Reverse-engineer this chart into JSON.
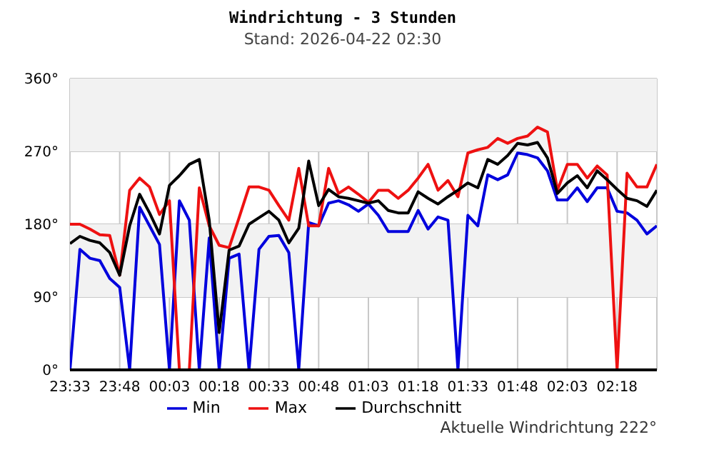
{
  "chart_data": {
    "type": "line",
    "title": "Windrichtung - 3 Stunden",
    "subtitle": "Stand: 2026-04-22 02:30",
    "x": [
      "2026-04-21T23:33",
      "2026-04-21T23:36",
      "2026-04-21T23:39",
      "2026-04-21T23:42",
      "2026-04-21T23:45",
      "2026-04-21T23:48",
      "2026-04-21T23:51",
      "2026-04-21T23:54",
      "2026-04-21T23:57",
      "2026-04-22T00:00",
      "2026-04-22T00:03",
      "2026-04-22T00:06",
      "2026-04-22T00:09",
      "2026-04-22T00:12",
      "2026-04-22T00:15",
      "2026-04-22T00:18",
      "2026-04-22T00:21",
      "2026-04-22T00:24",
      "2026-04-22T00:27",
      "2026-04-22T00:30",
      "2026-04-22T00:33",
      "2026-04-22T00:36",
      "2026-04-22T00:39",
      "2026-04-22T00:42",
      "2026-04-22T00:45",
      "2026-04-22T00:48",
      "2026-04-22T00:51",
      "2026-04-22T00:54",
      "2026-04-22T00:57",
      "2026-04-22T01:00",
      "2026-04-22T01:03",
      "2026-04-22T01:06",
      "2026-04-22T01:09",
      "2026-04-22T01:12",
      "2026-04-22T01:15",
      "2026-04-22T01:18",
      "2026-04-22T01:21",
      "2026-04-22T01:24",
      "2026-04-22T01:27",
      "2026-04-22T01:30",
      "2026-04-22T01:33",
      "2026-04-22T01:36",
      "2026-04-22T01:39",
      "2026-04-22T01:42",
      "2026-04-22T01:45",
      "2026-04-22T01:48",
      "2026-04-22T01:51",
      "2026-04-22T01:54",
      "2026-04-22T01:57",
      "2026-04-22T02:00",
      "2026-04-22T02:03",
      "2026-04-22T02:06",
      "2026-04-22T02:09",
      "2026-04-22T02:12",
      "2026-04-22T02:15",
      "2026-04-22T02:18",
      "2026-04-22T02:21",
      "2026-04-22T02:24",
      "2026-04-22T02:27",
      "2026-04-22T02:30"
    ],
    "series": [
      {
        "name": "Min",
        "color": "#0000dd",
        "values": [
          0,
          149,
          138,
          135,
          113,
          102,
          0,
          201,
          178,
          155,
          0,
          209,
          185,
          0,
          163,
          0,
          138,
          143,
          0,
          149,
          165,
          166,
          145,
          0,
          182,
          178,
          206,
          209,
          204,
          196,
          205,
          191,
          171,
          171,
          171,
          197,
          174,
          189,
          185,
          0,
          191,
          178,
          241,
          235,
          241,
          268,
          266,
          262,
          246,
          210,
          210,
          225,
          208,
          225,
          225,
          196,
          194,
          185,
          168,
          178
        ]
      },
      {
        "name": "Max",
        "color": "#ee1111",
        "values": [
          180,
          180,
          174,
          167,
          166,
          117,
          222,
          237,
          226,
          192,
          209,
          0,
          0,
          225,
          178,
          154,
          151,
          188,
          226,
          226,
          222,
          203,
          185,
          249,
          178,
          178,
          249,
          218,
          226,
          217,
          207,
          222,
          222,
          212,
          222,
          237,
          254,
          222,
          234,
          214,
          268,
          272,
          275,
          286,
          280,
          286,
          289,
          300,
          294,
          222,
          254,
          254,
          237,
          252,
          241,
          0,
          243,
          226,
          226,
          254
        ]
      },
      {
        "name": "Durchschnitt",
        "color": "#000000",
        "values": [
          156,
          165,
          160,
          157,
          145,
          117,
          178,
          217,
          194,
          168,
          228,
          240,
          254,
          260,
          185,
          46,
          148,
          153,
          180,
          188,
          196,
          185,
          157,
          175,
          258,
          203,
          223,
          214,
          212,
          209,
          206,
          209,
          197,
          194,
          194,
          220,
          212,
          205,
          214,
          222,
          231,
          225,
          260,
          254,
          265,
          280,
          278,
          281,
          262,
          218,
          231,
          240,
          225,
          246,
          235,
          223,
          212,
          209,
          202,
          222
        ]
      }
    ],
    "xlim": [
      "2026-04-21T23:33",
      "2026-04-22T02:30"
    ],
    "xticks": [
      {
        "value": "2026-04-21T23:33",
        "label": "23:33"
      },
      {
        "value": "2026-04-21T23:48",
        "label": "23:48"
      },
      {
        "value": "2026-04-22T00:03",
        "label": "00:03"
      },
      {
        "value": "2026-04-22T00:18",
        "label": "00:18"
      },
      {
        "value": "2026-04-22T00:33",
        "label": "00:33"
      },
      {
        "value": "2026-04-22T00:48",
        "label": "00:48"
      },
      {
        "value": "2026-04-22T01:03",
        "label": "01:03"
      },
      {
        "value": "2026-04-22T01:18",
        "label": "01:18"
      },
      {
        "value": "2026-04-22T01:33",
        "label": "01:33"
      },
      {
        "value": "2026-04-22T01:48",
        "label": "01:48"
      },
      {
        "value": "2026-04-22T02:03",
        "label": "02:03"
      },
      {
        "value": "2026-04-22T02:18",
        "label": "02:18"
      }
    ],
    "ylim": [
      0,
      360
    ],
    "yticks": [
      {
        "value": 0,
        "label": "0°"
      },
      {
        "value": 90,
        "label": "90°"
      },
      {
        "value": 180,
        "label": "180°"
      },
      {
        "value": 270,
        "label": "270°"
      },
      {
        "value": 360,
        "label": "360°"
      }
    ],
    "bands": [
      {
        "axis": "y",
        "from": 90,
        "to": 180,
        "label": null,
        "color": "#f2f2f2"
      },
      {
        "axis": "y",
        "from": 270,
        "to": 360,
        "label": null,
        "color": "#f2f2f2"
      }
    ],
    "grid": true,
    "legend": "bottom",
    "annotations": [
      "Aktuelle Windrichtung 222°"
    ]
  }
}
